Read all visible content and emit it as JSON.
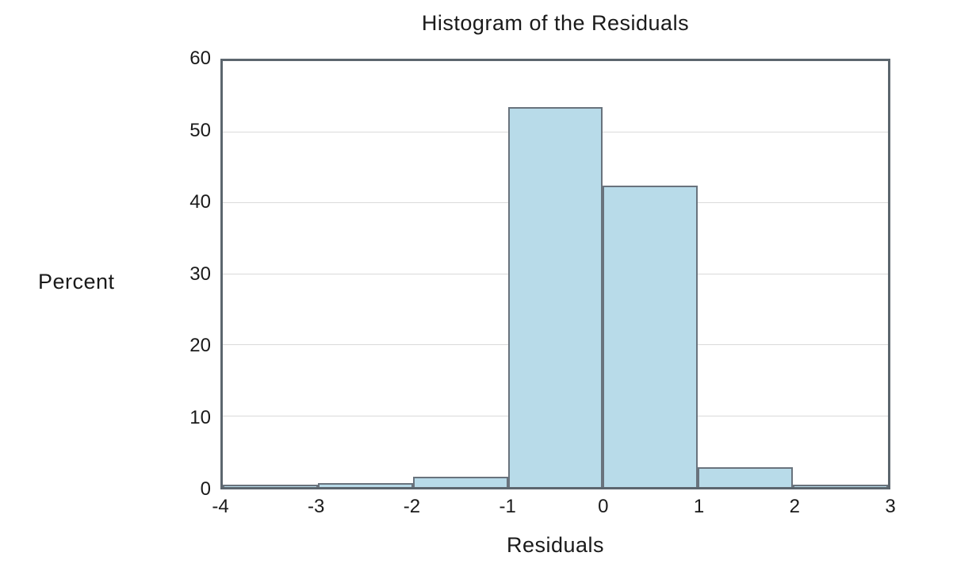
{
  "chart": {
    "title": "Histogram of the Residuals",
    "xlabel": "Residuals",
    "ylabel": "Percent"
  },
  "chart_data": {
    "type": "bar",
    "title": "Histogram of the Residuals",
    "xlabel": "Residuals",
    "ylabel": "Percent",
    "bin_edges": [
      -4,
      -3,
      -2,
      -1,
      0,
      1,
      2,
      3
    ],
    "values": [
      0.3,
      0.6,
      1.5,
      53.5,
      42.5,
      2.8,
      0.3
    ],
    "xlim": [
      -4,
      3
    ],
    "ylim": [
      0,
      60
    ],
    "x_ticks": [
      -4,
      -3,
      -2,
      -1,
      0,
      1,
      2,
      3
    ],
    "y_ticks": [
      0,
      10,
      20,
      30,
      40,
      50,
      60
    ],
    "grid": "horizontal",
    "legend": "none",
    "bar_fill": "#b8dbe9",
    "bar_border": "#69737d",
    "frame_color": "#5c666e",
    "gridline_color": "#dadada"
  }
}
